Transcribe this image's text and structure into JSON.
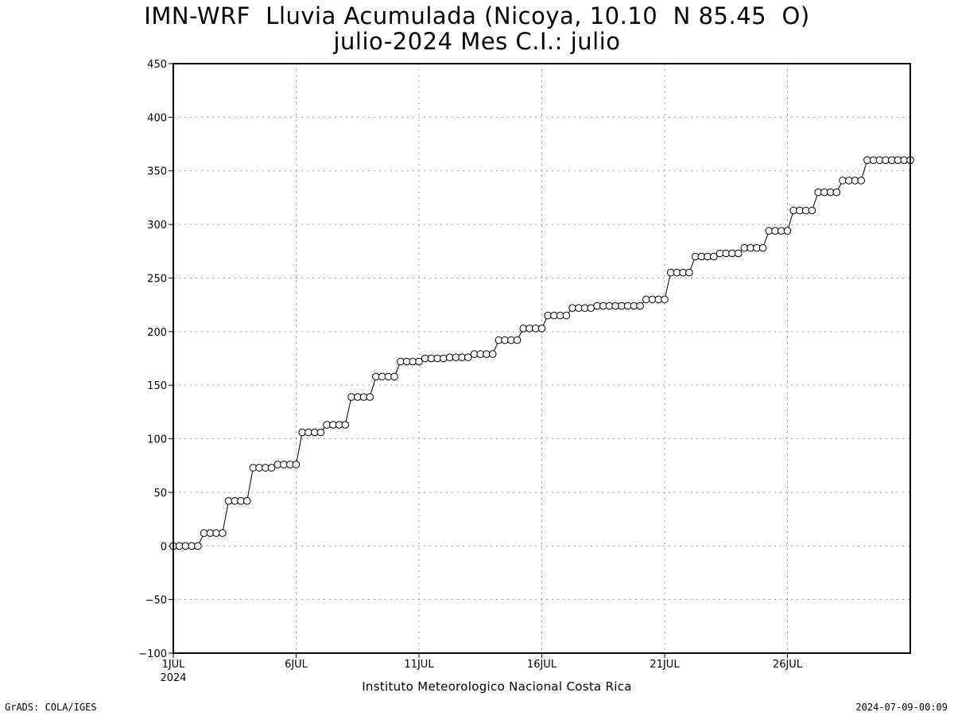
{
  "title_line1": "IMN-WRF  Lluvia Acumulada (Nicoya, 10.10  N 85.45  O)",
  "title_line2": "julio-2024 Mes C.I.: julio",
  "institution": "Instituto Meteorologico Nacional Costa Rica",
  "credit_left": "GrADS: COLA/IGES",
  "credit_right": "2024-07-09-00:09",
  "chart_data": {
    "type": "line",
    "title": "IMN-WRF  Lluvia Acumulada (Nicoya, 10.10  N 85.45  O) julio-2024 Mes C.I.: julio",
    "xlabel": "",
    "ylabel": "",
    "ylim": [
      -100,
      450
    ],
    "xlim_days": [
      1,
      31
    ],
    "yticks": [
      -100,
      -50,
      0,
      50,
      100,
      150,
      200,
      250,
      300,
      350,
      400,
      450
    ],
    "xticks": [
      {
        "day": 1,
        "label": "1JUL",
        "sublabel": "2024"
      },
      {
        "day": 6,
        "label": "6JUL",
        "sublabel": ""
      },
      {
        "day": 11,
        "label": "11JUL",
        "sublabel": ""
      },
      {
        "day": 16,
        "label": "16JUL",
        "sublabel": ""
      },
      {
        "day": 21,
        "label": "21JUL",
        "sublabel": ""
      },
      {
        "day": 26,
        "label": "26JUL",
        "sublabel": ""
      }
    ],
    "grid": true,
    "marker": "open-circle",
    "line_color": "#000000",
    "series": [
      {
        "x_start_day": 1,
        "step_hours": 6,
        "values": [
          0,
          0,
          0,
          0,
          0,
          12,
          12,
          12,
          12,
          42,
          42,
          42,
          42,
          73,
          73,
          73,
          73,
          76,
          76,
          76,
          76,
          106,
          106,
          106,
          106,
          113,
          113,
          113,
          113,
          139,
          139,
          139,
          139,
          158,
          158,
          158,
          158,
          172,
          172,
          172,
          172,
          175,
          175,
          175,
          175,
          176,
          176,
          176,
          176,
          179,
          179,
          179,
          179,
          192,
          192,
          192,
          192,
          203,
          203,
          203,
          203,
          215,
          215,
          215,
          215,
          222,
          222,
          222,
          222,
          224,
          224,
          224,
          224,
          224,
          224,
          224,
          224,
          230,
          230,
          230,
          230,
          255,
          255,
          255,
          255,
          270,
          270,
          270,
          270,
          273,
          273,
          273,
          273,
          278,
          278,
          278,
          278,
          294,
          294,
          294,
          294,
          313,
          313,
          313,
          313,
          330,
          330,
          330,
          330,
          341,
          341,
          341,
          341,
          360,
          360,
          360,
          360,
          360,
          360,
          360,
          360
        ]
      }
    ]
  }
}
